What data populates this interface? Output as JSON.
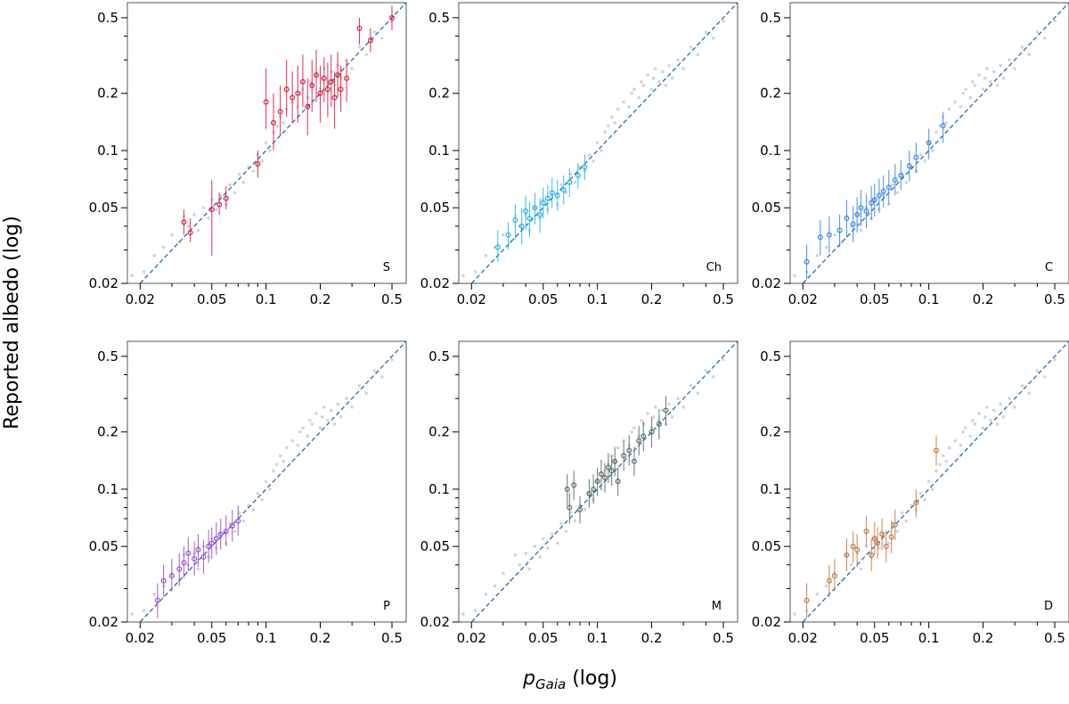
{
  "chart_data": {
    "type": "scatter",
    "xlabel_main": "p",
    "xlabel_sub": "Gaia",
    "xlabel_suffix": " (log)",
    "ylabel": "Reported albedo (log)",
    "xlim": [
      0.017,
      0.6
    ],
    "ylim": [
      0.02,
      0.6
    ],
    "scale": "log",
    "x_ticks": [
      0.02,
      0.05,
      0.1,
      0.2,
      0.5
    ],
    "x_tick_labels": [
      "0.02",
      "0.05",
      "0.1",
      "0.2",
      "0.5"
    ],
    "y_ticks": [
      0.02,
      0.05,
      0.1,
      0.2,
      0.5
    ],
    "y_tick_labels": [
      "0.02",
      "0.05",
      "0.1",
      "0.2",
      "0.5"
    ],
    "reference_line": "y = x",
    "background": {
      "color": "#d4d4d4",
      "description": "all asteroids (grey) shown in every panel",
      "points": [
        [
          0.018,
          0.022
        ],
        [
          0.021,
          0.023
        ],
        [
          0.024,
          0.028
        ],
        [
          0.027,
          0.031
        ],
        [
          0.03,
          0.036
        ],
        [
          0.033,
          0.033
        ],
        [
          0.035,
          0.045
        ],
        [
          0.037,
          0.04
        ],
        [
          0.04,
          0.046
        ],
        [
          0.042,
          0.038
        ],
        [
          0.045,
          0.05
        ],
        [
          0.048,
          0.044
        ],
        [
          0.05,
          0.055
        ],
        [
          0.053,
          0.049
        ],
        [
          0.056,
          0.058
        ],
        [
          0.06,
          0.052
        ],
        [
          0.063,
          0.066
        ],
        [
          0.067,
          0.06
        ],
        [
          0.071,
          0.075
        ],
        [
          0.075,
          0.068
        ],
        [
          0.08,
          0.082
        ],
        [
          0.085,
          0.078
        ],
        [
          0.09,
          0.095
        ],
        [
          0.095,
          0.088
        ],
        [
          0.1,
          0.11
        ],
        [
          0.105,
          0.1
        ],
        [
          0.11,
          0.125
        ],
        [
          0.115,
          0.135
        ],
        [
          0.12,
          0.15
        ],
        [
          0.125,
          0.14
        ],
        [
          0.13,
          0.165
        ],
        [
          0.14,
          0.18
        ],
        [
          0.15,
          0.17
        ],
        [
          0.155,
          0.2
        ],
        [
          0.16,
          0.21
        ],
        [
          0.17,
          0.19
        ],
        [
          0.175,
          0.23
        ],
        [
          0.18,
          0.22
        ],
        [
          0.19,
          0.25
        ],
        [
          0.2,
          0.21
        ],
        [
          0.205,
          0.24
        ],
        [
          0.21,
          0.27
        ],
        [
          0.22,
          0.23
        ],
        [
          0.23,
          0.26
        ],
        [
          0.24,
          0.22
        ],
        [
          0.25,
          0.28
        ],
        [
          0.26,
          0.24
        ],
        [
          0.28,
          0.3
        ],
        [
          0.3,
          0.27
        ],
        [
          0.33,
          0.35
        ],
        [
          0.36,
          0.32
        ],
        [
          0.4,
          0.42
        ],
        [
          0.44,
          0.39
        ],
        [
          0.5,
          0.48
        ]
      ]
    },
    "panels": [
      {
        "label": "S",
        "color": "#dc2044",
        "series": [
          [
            0.035,
            0.042,
            0.036,
            0.049
          ],
          [
            0.038,
            0.037,
            0.033,
            0.044
          ],
          [
            0.05,
            0.049,
            0.028,
            0.07
          ],
          [
            0.055,
            0.052,
            0.046,
            0.06
          ],
          [
            0.06,
            0.056,
            0.049,
            0.065
          ],
          [
            0.09,
            0.085,
            0.072,
            0.1
          ],
          [
            0.1,
            0.18,
            0.13,
            0.27
          ],
          [
            0.11,
            0.14,
            0.1,
            0.2
          ],
          [
            0.12,
            0.16,
            0.12,
            0.22
          ],
          [
            0.13,
            0.21,
            0.15,
            0.3
          ],
          [
            0.14,
            0.19,
            0.14,
            0.26
          ],
          [
            0.15,
            0.2,
            0.14,
            0.28
          ],
          [
            0.16,
            0.23,
            0.17,
            0.32
          ],
          [
            0.17,
            0.17,
            0.12,
            0.24
          ],
          [
            0.18,
            0.22,
            0.16,
            0.3
          ],
          [
            0.19,
            0.25,
            0.18,
            0.34
          ],
          [
            0.2,
            0.2,
            0.14,
            0.28
          ],
          [
            0.21,
            0.24,
            0.18,
            0.31
          ],
          [
            0.22,
            0.21,
            0.15,
            0.29
          ],
          [
            0.23,
            0.23,
            0.17,
            0.32
          ],
          [
            0.24,
            0.19,
            0.13,
            0.26
          ],
          [
            0.25,
            0.25,
            0.19,
            0.33
          ],
          [
            0.26,
            0.21,
            0.16,
            0.28
          ],
          [
            0.28,
            0.24,
            0.18,
            0.3
          ],
          [
            0.33,
            0.44,
            0.36,
            0.5
          ],
          [
            0.38,
            0.38,
            0.33,
            0.44
          ],
          [
            0.5,
            0.5,
            0.43,
            0.58
          ]
        ]
      },
      {
        "label": "Ch",
        "color": "#29b4ea",
        "series": [
          [
            0.028,
            0.031,
            0.026,
            0.038
          ],
          [
            0.032,
            0.036,
            0.03,
            0.042
          ],
          [
            0.035,
            0.043,
            0.034,
            0.052
          ],
          [
            0.038,
            0.04,
            0.032,
            0.05
          ],
          [
            0.04,
            0.048,
            0.038,
            0.058
          ],
          [
            0.042,
            0.044,
            0.035,
            0.054
          ],
          [
            0.045,
            0.05,
            0.041,
            0.06
          ],
          [
            0.048,
            0.046,
            0.037,
            0.056
          ],
          [
            0.05,
            0.053,
            0.044,
            0.064
          ],
          [
            0.053,
            0.056,
            0.046,
            0.066
          ],
          [
            0.056,
            0.06,
            0.05,
            0.072
          ],
          [
            0.06,
            0.058,
            0.048,
            0.07
          ],
          [
            0.065,
            0.062,
            0.052,
            0.074
          ],
          [
            0.07,
            0.068,
            0.057,
            0.08
          ],
          [
            0.078,
            0.074,
            0.063,
            0.086
          ],
          [
            0.085,
            0.082,
            0.07,
            0.095
          ]
        ]
      },
      {
        "label": "C",
        "color": "#3a86e8",
        "series": [
          [
            0.021,
            0.026,
            0.021,
            0.032
          ],
          [
            0.025,
            0.035,
            0.028,
            0.043
          ],
          [
            0.028,
            0.036,
            0.029,
            0.045
          ],
          [
            0.032,
            0.038,
            0.031,
            0.046
          ],
          [
            0.035,
            0.044,
            0.035,
            0.055
          ],
          [
            0.038,
            0.041,
            0.033,
            0.051
          ],
          [
            0.04,
            0.046,
            0.037,
            0.057
          ],
          [
            0.042,
            0.05,
            0.04,
            0.062
          ],
          [
            0.045,
            0.048,
            0.039,
            0.059
          ],
          [
            0.048,
            0.053,
            0.043,
            0.065
          ],
          [
            0.05,
            0.055,
            0.045,
            0.067
          ],
          [
            0.053,
            0.058,
            0.047,
            0.071
          ],
          [
            0.056,
            0.061,
            0.05,
            0.074
          ],
          [
            0.06,
            0.064,
            0.052,
            0.079
          ],
          [
            0.065,
            0.07,
            0.058,
            0.085
          ],
          [
            0.07,
            0.074,
            0.062,
            0.089
          ],
          [
            0.078,
            0.083,
            0.069,
            0.1
          ],
          [
            0.085,
            0.092,
            0.076,
            0.11
          ],
          [
            0.1,
            0.11,
            0.09,
            0.13
          ],
          [
            0.12,
            0.135,
            0.11,
            0.16
          ]
        ]
      },
      {
        "label": "P",
        "color": "#9b4fd1",
        "series": [
          [
            0.025,
            0.026,
            0.021,
            0.032
          ],
          [
            0.027,
            0.033,
            0.027,
            0.04
          ],
          [
            0.03,
            0.035,
            0.029,
            0.043
          ],
          [
            0.033,
            0.038,
            0.031,
            0.046
          ],
          [
            0.035,
            0.041,
            0.034,
            0.05
          ],
          [
            0.037,
            0.046,
            0.037,
            0.056
          ],
          [
            0.04,
            0.043,
            0.035,
            0.053
          ],
          [
            0.042,
            0.048,
            0.039,
            0.058
          ],
          [
            0.045,
            0.044,
            0.036,
            0.054
          ],
          [
            0.048,
            0.05,
            0.041,
            0.061
          ],
          [
            0.05,
            0.052,
            0.043,
            0.063
          ],
          [
            0.053,
            0.055,
            0.045,
            0.067
          ],
          [
            0.056,
            0.058,
            0.048,
            0.07
          ],
          [
            0.06,
            0.06,
            0.05,
            0.073
          ],
          [
            0.065,
            0.064,
            0.053,
            0.078
          ],
          [
            0.07,
            0.068,
            0.057,
            0.082
          ]
        ]
      },
      {
        "label": "M",
        "color": "#5a6e6a",
        "series": [
          [
            0.068,
            0.1,
            0.082,
            0.12
          ],
          [
            0.07,
            0.08,
            0.066,
            0.096
          ],
          [
            0.074,
            0.105,
            0.088,
            0.125
          ],
          [
            0.08,
            0.078,
            0.066,
            0.092
          ],
          [
            0.09,
            0.095,
            0.08,
            0.113
          ],
          [
            0.095,
            0.1,
            0.084,
            0.12
          ],
          [
            0.1,
            0.11,
            0.092,
            0.13
          ],
          [
            0.105,
            0.12,
            0.1,
            0.143
          ],
          [
            0.11,
            0.115,
            0.096,
            0.137
          ],
          [
            0.115,
            0.13,
            0.108,
            0.155
          ],
          [
            0.12,
            0.125,
            0.104,
            0.15
          ],
          [
            0.125,
            0.14,
            0.117,
            0.167
          ],
          [
            0.13,
            0.11,
            0.092,
            0.13
          ],
          [
            0.14,
            0.15,
            0.125,
            0.18
          ],
          [
            0.15,
            0.16,
            0.133,
            0.192
          ],
          [
            0.16,
            0.14,
            0.117,
            0.167
          ],
          [
            0.17,
            0.18,
            0.15,
            0.215
          ],
          [
            0.18,
            0.19,
            0.158,
            0.228
          ],
          [
            0.2,
            0.2,
            0.166,
            0.24
          ],
          [
            0.22,
            0.22,
            0.183,
            0.264
          ],
          [
            0.24,
            0.26,
            0.216,
            0.31
          ]
        ]
      },
      {
        "label": "D",
        "color": "#c77a45",
        "series": [
          [
            0.021,
            0.026,
            0.021,
            0.032
          ],
          [
            0.028,
            0.033,
            0.027,
            0.04
          ],
          [
            0.03,
            0.035,
            0.029,
            0.043
          ],
          [
            0.035,
            0.045,
            0.037,
            0.055
          ],
          [
            0.038,
            0.05,
            0.041,
            0.06
          ],
          [
            0.04,
            0.048,
            0.039,
            0.058
          ],
          [
            0.045,
            0.06,
            0.05,
            0.072
          ],
          [
            0.048,
            0.045,
            0.037,
            0.055
          ],
          [
            0.05,
            0.055,
            0.045,
            0.067
          ],
          [
            0.052,
            0.052,
            0.043,
            0.063
          ],
          [
            0.055,
            0.058,
            0.048,
            0.07
          ],
          [
            0.058,
            0.05,
            0.041,
            0.061
          ],
          [
            0.062,
            0.056,
            0.046,
            0.068
          ],
          [
            0.065,
            0.065,
            0.054,
            0.078
          ],
          [
            0.085,
            0.085,
            0.071,
            0.1
          ],
          [
            0.11,
            0.16,
            0.133,
            0.192
          ]
        ]
      }
    ]
  }
}
